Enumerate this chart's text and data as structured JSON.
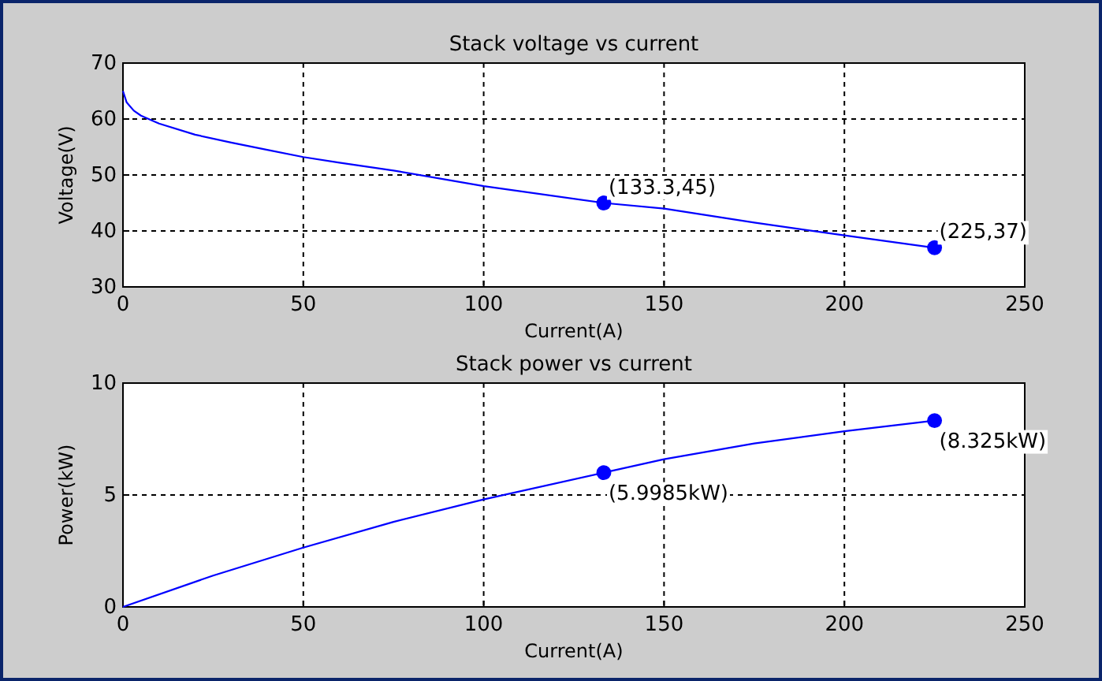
{
  "chart_data": [
    {
      "type": "line",
      "title": "Stack voltage vs current",
      "xlabel": "Current(A)",
      "ylabel": "Voltage(V)",
      "xlim": [
        0,
        250
      ],
      "xticks": [
        0,
        50,
        100,
        150,
        200,
        250
      ],
      "ylim": [
        30,
        70
      ],
      "yticks": [
        30,
        40,
        50,
        60,
        70
      ],
      "grid": true,
      "series": [
        {
          "type": "line",
          "color": "#0000ff",
          "marker": "none",
          "x": [
            0,
            1,
            3,
            5,
            10,
            20,
            30,
            40,
            50,
            60,
            75,
            100,
            133.3,
            150,
            175,
            200,
            225
          ],
          "values": [
            65,
            63,
            61.5,
            60.6,
            59.2,
            57.2,
            55.8,
            54.5,
            53.2,
            52.2,
            50.8,
            48,
            45,
            44,
            41.5,
            39.2,
            37
          ]
        },
        {
          "type": "scatter",
          "color": "#0000ff",
          "marker": "circle",
          "x": [
            133.3,
            225
          ],
          "values": [
            45,
            37
          ]
        }
      ],
      "annotations": [
        "(133.3,45)",
        "(225,37)"
      ]
    },
    {
      "type": "line",
      "title": "Stack power vs current",
      "xlabel": "Current(A)",
      "ylabel": "Power(kW)",
      "xlim": [
        0,
        250
      ],
      "xticks": [
        0,
        50,
        100,
        150,
        200,
        250
      ],
      "ylim": [
        0,
        10
      ],
      "yticks": [
        0,
        5,
        10
      ],
      "grid": true,
      "series": [
        {
          "type": "line",
          "color": "#0000ff",
          "marker": "none",
          "x": [
            0,
            25,
            50,
            75,
            100,
            133.3,
            150,
            175,
            200,
            225
          ],
          "values": [
            0,
            1.4,
            2.65,
            3.8,
            4.8,
            5.9985,
            6.6,
            7.3,
            7.85,
            8.325
          ]
        },
        {
          "type": "scatter",
          "color": "#0000ff",
          "marker": "circle",
          "x": [
            133.3,
            225
          ],
          "values": [
            5.9985,
            8.325
          ]
        }
      ],
      "annotations": [
        "(5.9985kW)",
        "(8.325kW)"
      ]
    }
  ]
}
